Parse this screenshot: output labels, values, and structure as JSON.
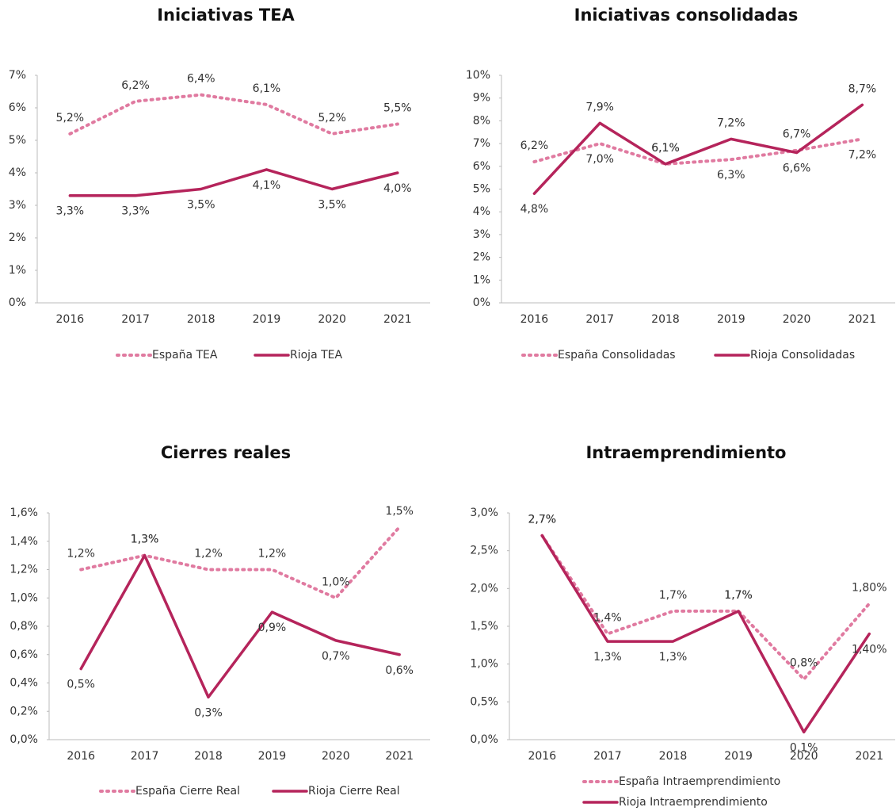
{
  "chart_data": [
    {
      "type": "line",
      "title": "Iniciativas TEA",
      "categories": [
        "2016",
        "2017",
        "2018",
        "2019",
        "2020",
        "2021"
      ],
      "series": [
        {
          "name": "España TEA",
          "color": "#e07aa0",
          "dash": "dotted",
          "values": [
            5.2,
            6.2,
            6.4,
            6.1,
            5.2,
            5.5
          ],
          "value_labels": [
            "5,2%",
            "6,2%",
            "6,4%",
            "6,1%",
            "5,2%",
            "5,5%"
          ]
        },
        {
          "name": "Rioja TEA",
          "color": "#b5245b",
          "dash": "solid",
          "values": [
            3.3,
            3.3,
            3.5,
            4.1,
            3.5,
            4.0
          ],
          "value_labels": [
            "3,3%",
            "3,3%",
            "3,5%",
            "4,1%",
            "3,5%",
            "4,0%"
          ]
        }
      ],
      "ylim": [
        0,
        7
      ],
      "yticks": [
        {
          "value": 0,
          "label": "0%"
        },
        {
          "value": 1,
          "label": "1%"
        },
        {
          "value": 2,
          "label": "2%"
        },
        {
          "value": 3,
          "label": "3%"
        },
        {
          "value": 4,
          "label": "4%"
        },
        {
          "value": 5,
          "label": "5%"
        },
        {
          "value": 6,
          "label": "6%"
        },
        {
          "value": 7,
          "label": "7%"
        }
      ]
    },
    {
      "type": "line",
      "title": "Iniciativas consolidadas",
      "categories": [
        "2016",
        "2017",
        "2018",
        "2019",
        "2020",
        "2021"
      ],
      "series": [
        {
          "name": "España Consolidadas",
          "color": "#e07aa0",
          "dash": "dotted",
          "values": [
            6.2,
            7.0,
            6.1,
            6.3,
            6.7,
            7.2
          ],
          "value_labels": [
            "6,2%",
            "7,0%",
            "6,1%",
            "6,3%",
            "6,7%",
            "7,2%"
          ]
        },
        {
          "name": "Rioja Consolidadas",
          "color": "#b5245b",
          "dash": "solid",
          "values": [
            4.8,
            7.9,
            6.1,
            7.2,
            6.6,
            8.7
          ],
          "value_labels": [
            "4,8%",
            "7,9%",
            "6,1%",
            "7,2%",
            "6,6%",
            "8,7%"
          ]
        }
      ],
      "ylim": [
        0,
        10
      ],
      "yticks": [
        {
          "value": 0,
          "label": "0%"
        },
        {
          "value": 1,
          "label": "1%"
        },
        {
          "value": 2,
          "label": "2%"
        },
        {
          "value": 3,
          "label": "3%"
        },
        {
          "value": 4,
          "label": "4%"
        },
        {
          "value": 5,
          "label": "5%"
        },
        {
          "value": 6,
          "label": "6%"
        },
        {
          "value": 7,
          "label": "7%"
        },
        {
          "value": 8,
          "label": "8%"
        },
        {
          "value": 9,
          "label": "9%"
        },
        {
          "value": 10,
          "label": "10%"
        }
      ]
    },
    {
      "type": "line",
      "title": "Cierres reales",
      "categories": [
        "2016",
        "2017",
        "2018",
        "2019",
        "2020",
        "2021"
      ],
      "series": [
        {
          "name": "España Cierre Real",
          "color": "#e07aa0",
          "dash": "dotted",
          "values": [
            1.2,
            1.3,
            1.2,
            1.2,
            1.0,
            1.5
          ],
          "value_labels": [
            "1,2%",
            "1,3%",
            "1,2%",
            "1,2%",
            "1,0%",
            "1,5%"
          ]
        },
        {
          "name": "Rioja Cierre Real",
          "color": "#b5245b",
          "dash": "solid",
          "values": [
            0.5,
            1.3,
            0.3,
            0.9,
            0.7,
            0.6
          ],
          "value_labels": [
            "0,5%",
            "1,3%",
            "0,3%",
            "0,9%",
            "0,7%",
            "0,6%"
          ]
        }
      ],
      "ylim": [
        0,
        1.6
      ],
      "yticks": [
        {
          "value": 0,
          "label": "0,0%"
        },
        {
          "value": 0.2,
          "label": "0,2%"
        },
        {
          "value": 0.4,
          "label": "0,4%"
        },
        {
          "value": 0.6,
          "label": "0,6%"
        },
        {
          "value": 0.8,
          "label": "0,8%"
        },
        {
          "value": 1.0,
          "label": "1,0%"
        },
        {
          "value": 1.2,
          "label": "1,2%"
        },
        {
          "value": 1.4,
          "label": "1,4%"
        },
        {
          "value": 1.6,
          "label": "1,6%"
        }
      ]
    },
    {
      "type": "line",
      "title": "Intraemprendimiento",
      "categories": [
        "2016",
        "2017",
        "2018",
        "2019",
        "2020",
        "2021"
      ],
      "series": [
        {
          "name": "España Intraemprendimiento",
          "color": "#e07aa0",
          "dash": "dotted",
          "values": [
            2.7,
            1.4,
            1.7,
            1.7,
            0.8,
            1.8
          ],
          "value_labels": [
            "2,7%",
            "1,4%",
            "1,7%",
            "1,7%",
            "0,8%",
            "1,80%"
          ]
        },
        {
          "name": "Rioja Intraemprendimiento",
          "color": "#b5245b",
          "dash": "solid",
          "values": [
            2.7,
            1.3,
            1.3,
            1.7,
            0.1,
            1.4
          ],
          "value_labels": [
            "2,7%",
            "1,3%",
            "1,3%",
            "1,7%",
            "0,1%",
            "1,40%"
          ]
        }
      ],
      "ylim": [
        0,
        3
      ],
      "yticks": [
        {
          "value": 0,
          "label": "0,0%"
        },
        {
          "value": 0.5,
          "label": "0,5%"
        },
        {
          "value": 1.0,
          "label": "1,0%"
        },
        {
          "value": 1.5,
          "label": "1,5%"
        },
        {
          "value": 2.0,
          "label": "2,0%"
        },
        {
          "value": 2.5,
          "label": "2,5%"
        },
        {
          "value": 3.0,
          "label": "3,0%"
        }
      ]
    }
  ]
}
